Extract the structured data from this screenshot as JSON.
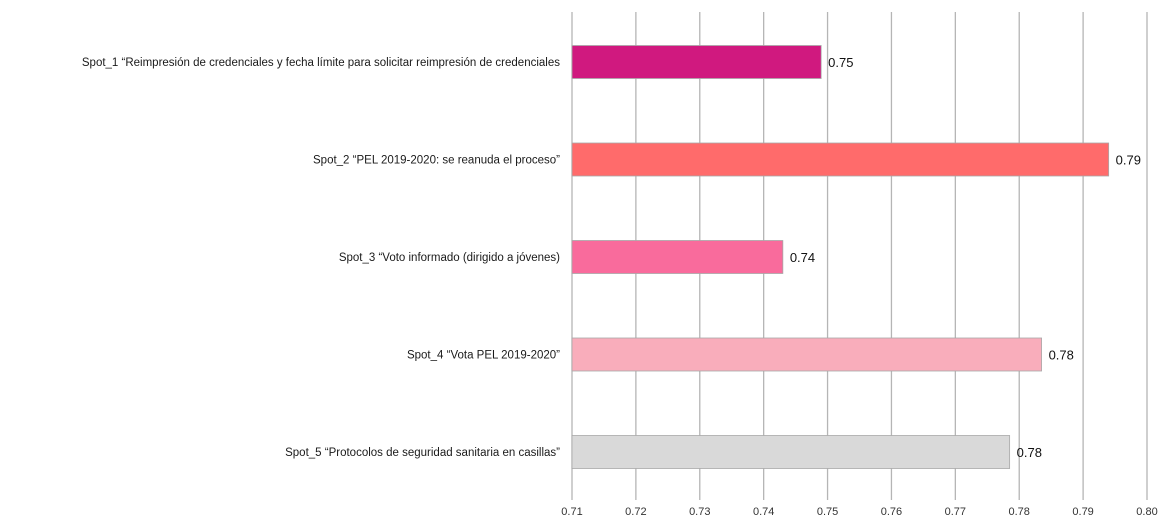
{
  "chart_data": {
    "type": "bar",
    "orientation": "horizontal",
    "title": "",
    "xlabel": "",
    "ylabel": "",
    "categories": [
      "Spot_1 “Reimpresión de credenciales y fecha límite para solicitar reimpresión de credenciales",
      "Spot_2 “PEL 2019-2020: se reanuda el proceso”",
      "Spot_3 “Voto informado (dirigido a jóvenes)",
      "Spot_4 “Vota  PEL 2019-2020”",
      "Spot_5 “Protocolos de seguridad sanitaria en casillas”"
    ],
    "values": [
      0.749,
      0.794,
      0.743,
      0.7835,
      0.7785
    ],
    "data_labels": [
      "0.75",
      "0.79",
      "0.74",
      "0.78",
      "0.78"
    ],
    "bar_colors": [
      "#d0197f",
      "#ff6b6b",
      "#f96b9c",
      "#f9adbb",
      "#d9d9d9"
    ],
    "xlim": [
      0.71,
      0.8
    ],
    "xticks": [
      "0.71",
      "0.72",
      "0.73",
      "0.74",
      "0.75",
      "0.76",
      "0.77",
      "0.78",
      "0.79",
      "0.80"
    ],
    "grid": true,
    "legend": "none"
  }
}
